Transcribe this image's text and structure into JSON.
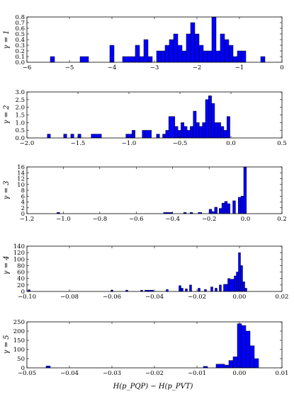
{
  "chart_data": [
    {
      "type": "bar",
      "ylabel": "γ = 1",
      "xlim": [
        -6,
        0
      ],
      "ylim": [
        0,
        0.8
      ],
      "xticks": [
        -6,
        -5,
        -4,
        -3,
        -2,
        -1,
        0
      ],
      "xtick_labels": [
        "−6",
        "−5",
        "−4",
        "−3",
        "−2",
        "−1",
        "0"
      ],
      "yticks": [
        0,
        0.1,
        0.2,
        0.3,
        0.4,
        0.5,
        0.6,
        0.7,
        0.8
      ],
      "ytick_labels": [
        "0.0",
        "0.1",
        "0.2",
        "0.3",
        "0.4",
        "0.5",
        "0.6",
        "0.7",
        "0.8"
      ],
      "bins": [
        [
          -5.45,
          -5.35,
          0.1
        ],
        [
          -4.75,
          -4.55,
          0.1
        ],
        [
          -4.05,
          -3.95,
          0.3
        ],
        [
          -3.75,
          -3.45,
          0.1
        ],
        [
          -3.45,
          -3.35,
          0.3
        ],
        [
          -3.35,
          -3.25,
          0.1
        ],
        [
          -3.25,
          -3.15,
          0.4
        ],
        [
          -3.15,
          -3.05,
          0.1
        ],
        [
          -2.95,
          -2.85,
          0.2
        ],
        [
          -2.85,
          -2.75,
          0.2
        ],
        [
          -2.75,
          -2.65,
          0.3
        ],
        [
          -2.65,
          -2.55,
          0.4
        ],
        [
          -2.55,
          -2.45,
          0.5
        ],
        [
          -2.45,
          -2.35,
          0.3
        ],
        [
          -2.35,
          -2.25,
          0.2
        ],
        [
          -2.25,
          -2.15,
          0.5
        ],
        [
          -2.15,
          -2.05,
          0.7
        ],
        [
          -2.05,
          -1.95,
          0.5
        ],
        [
          -1.95,
          -1.85,
          0.3
        ],
        [
          -1.85,
          -1.75,
          0.2
        ],
        [
          -1.75,
          -1.65,
          0.2
        ],
        [
          -1.65,
          -1.55,
          0.8
        ],
        [
          -1.55,
          -1.45,
          0.2
        ],
        [
          -1.45,
          -1.35,
          0.5
        ],
        [
          -1.35,
          -1.25,
          0.4
        ],
        [
          -1.25,
          -1.15,
          0.3
        ],
        [
          -1.15,
          -1.05,
          0.1
        ],
        [
          -1.05,
          -0.95,
          0.2
        ],
        [
          -0.95,
          -0.85,
          0.2
        ],
        [
          -0.5,
          -0.4,
          0.1
        ]
      ]
    },
    {
      "type": "bar",
      "ylabel": "γ = 2",
      "xlim": [
        -2,
        0.5
      ],
      "ylim": [
        0,
        3.0
      ],
      "xticks": [
        -2,
        -1.5,
        -1,
        -0.5,
        0,
        0.5
      ],
      "xtick_labels": [
        "−2.0",
        "−1.5",
        "−1.0",
        "−0.5",
        "0.0",
        "0.5"
      ],
      "yticks": [
        0,
        0.5,
        1,
        1.5,
        2,
        2.5,
        3
      ],
      "ytick_labels": [
        "0.0",
        "0.5",
        "1.0",
        "1.5",
        "2.0",
        "2.5",
        "3.0"
      ],
      "bins": [
        [
          -1.8,
          -1.77,
          0.25
        ],
        [
          -1.64,
          -1.61,
          0.25
        ],
        [
          -1.57,
          -1.54,
          0.25
        ],
        [
          -1.5,
          -1.47,
          0.25
        ],
        [
          -1.37,
          -1.27,
          0.25
        ],
        [
          -1.03,
          -0.97,
          0.25
        ],
        [
          -0.97,
          -0.94,
          0.5
        ],
        [
          -0.87,
          -0.84,
          0.5
        ],
        [
          -0.84,
          -0.78,
          0.5
        ],
        [
          -0.73,
          -0.7,
          0.25
        ],
        [
          -0.67,
          -0.64,
          0.25
        ],
        [
          -0.64,
          -0.61,
          0.5
        ],
        [
          -0.61,
          -0.55,
          1.4
        ],
        [
          -0.55,
          -0.52,
          0.75
        ],
        [
          -0.52,
          -0.49,
          0.5
        ],
        [
          -0.49,
          -0.46,
          1.0
        ],
        [
          -0.46,
          -0.43,
          0.75
        ],
        [
          -0.43,
          -0.4,
          0.5
        ],
        [
          -0.4,
          -0.37,
          0.75
        ],
        [
          -0.37,
          -0.34,
          1.75
        ],
        [
          -0.34,
          -0.31,
          1.0
        ],
        [
          -0.31,
          -0.28,
          0.75
        ],
        [
          -0.28,
          -0.25,
          1.0
        ],
        [
          -0.25,
          -0.22,
          2.5
        ],
        [
          -0.22,
          -0.19,
          2.75
        ],
        [
          -0.19,
          -0.16,
          2.25
        ],
        [
          -0.16,
          -0.13,
          1.0
        ],
        [
          -0.13,
          -0.1,
          1.0
        ],
        [
          -0.1,
          -0.07,
          0.75
        ],
        [
          -0.07,
          -0.04,
          0.5
        ],
        [
          -0.04,
          -0.01,
          1.4
        ]
      ]
    },
    {
      "type": "bar",
      "ylabel": "γ = 3",
      "xlim": [
        -1.2,
        0.2
      ],
      "ylim": [
        0,
        16
      ],
      "xticks": [
        -1.2,
        -1.0,
        -0.8,
        -0.6,
        -0.4,
        -0.2,
        0,
        0.2
      ],
      "xtick_labels": [
        "−1.2",
        "−1.0",
        "−0.8",
        "−0.6",
        "−0.4",
        "−0.2",
        "0.0",
        "0.2"
      ],
      "yticks": [
        0,
        2,
        4,
        6,
        8,
        10,
        12,
        14,
        16
      ],
      "ytick_labels": [
        "0",
        "2",
        "4",
        "6",
        "8",
        "10",
        "12",
        "14",
        "16"
      ],
      "bins": [
        [
          -1.035,
          -1.02,
          0.4
        ],
        [
          -0.45,
          -0.4,
          0.4
        ],
        [
          -0.34,
          -0.325,
          0.4
        ],
        [
          -0.305,
          -0.29,
          0.4
        ],
        [
          -0.26,
          -0.24,
          0.4
        ],
        [
          -0.2,
          -0.185,
          1.5
        ],
        [
          -0.185,
          -0.17,
          0.7
        ],
        [
          -0.17,
          -0.155,
          2.2
        ],
        [
          -0.145,
          -0.13,
          1.8
        ],
        [
          -0.13,
          -0.115,
          3.6
        ],
        [
          -0.115,
          -0.1,
          4.2
        ],
        [
          -0.1,
          -0.085,
          3.4
        ],
        [
          -0.07,
          -0.055,
          4.4
        ],
        [
          -0.04,
          -0.025,
          5.6
        ],
        [
          -0.025,
          -0.01,
          6.0
        ],
        [
          -0.01,
          0.005,
          16
        ]
      ]
    },
    {
      "type": "bar",
      "ylabel": "γ = 4",
      "xlim": [
        -0.1,
        0.02
      ],
      "ylim": [
        0,
        140
      ],
      "xticks": [
        -0.1,
        -0.08,
        -0.06,
        -0.04,
        -0.02,
        0,
        0.02
      ],
      "xtick_labels": [
        "−0.10",
        "−0.08",
        "−0.06",
        "−0.04",
        "−0.02",
        "0.00",
        "0.02"
      ],
      "yticks": [
        0,
        20,
        40,
        60,
        80,
        100,
        120,
        140
      ],
      "ytick_labels": [
        "0",
        "20",
        "40",
        "60",
        "80",
        "100",
        "120",
        "140"
      ],
      "bins": [
        [
          -0.0995,
          -0.0985,
          5
        ],
        [
          -0.0605,
          -0.0595,
          4
        ],
        [
          -0.0535,
          -0.0525,
          4
        ],
        [
          -0.0465,
          -0.0455,
          4
        ],
        [
          -0.0445,
          -0.0405,
          4
        ],
        [
          -0.0345,
          -0.0335,
          6
        ],
        [
          -0.0285,
          -0.0275,
          18
        ],
        [
          -0.0275,
          -0.0265,
          10
        ],
        [
          -0.0255,
          -0.0245,
          8
        ],
        [
          -0.0235,
          -0.0225,
          20
        ],
        [
          -0.0195,
          -0.0185,
          10
        ],
        [
          -0.0165,
          -0.0155,
          6
        ],
        [
          -0.0135,
          -0.0125,
          14
        ],
        [
          -0.0115,
          -0.0105,
          10
        ],
        [
          -0.0095,
          -0.0085,
          20
        ],
        [
          -0.0075,
          -0.0055,
          22
        ],
        [
          -0.0055,
          -0.0045,
          40
        ],
        [
          -0.0045,
          -0.0025,
          38
        ],
        [
          -0.0025,
          -0.0015,
          48
        ],
        [
          -0.0015,
          -0.0005,
          60
        ],
        [
          -0.0005,
          0.0005,
          120
        ],
        [
          0.0005,
          0.0015,
          80
        ],
        [
          0.0015,
          0.0025,
          30
        ],
        [
          0.0025,
          0.0035,
          10
        ]
      ]
    },
    {
      "type": "bar",
      "ylabel": "γ = 5",
      "xlabel": "H(p_PQP) − H(p_PVT)",
      "xlim": [
        -0.05,
        0.01
      ],
      "ylim": [
        0,
        250
      ],
      "xticks": [
        -0.05,
        -0.04,
        -0.03,
        -0.02,
        -0.01,
        0,
        0.01
      ],
      "xtick_labels": [
        "−0.05",
        "−0.04",
        "−0.03",
        "−0.02",
        "−0.01",
        "0.00",
        "0.01"
      ],
      "yticks": [
        0,
        50,
        100,
        150,
        200,
        250
      ],
      "ytick_labels": [
        "0",
        "50",
        "100",
        "150",
        "200",
        "250"
      ],
      "bins": [
        [
          -0.0455,
          -0.0445,
          10
        ],
        [
          -0.0085,
          -0.0075,
          8
        ],
        [
          -0.0055,
          -0.0035,
          20
        ],
        [
          -0.0035,
          -0.0025,
          15
        ],
        [
          -0.0025,
          -0.0015,
          40
        ],
        [
          -0.0015,
          -0.0005,
          60
        ],
        [
          -0.0005,
          0.0005,
          240
        ],
        [
          0.0005,
          0.0015,
          230
        ],
        [
          0.0015,
          0.0025,
          200
        ],
        [
          0.0025,
          0.0035,
          120
        ],
        [
          0.0035,
          0.0045,
          50
        ]
      ]
    }
  ],
  "colors": {
    "bar_fill": "#0000ff",
    "bar_edge": "#000000"
  }
}
